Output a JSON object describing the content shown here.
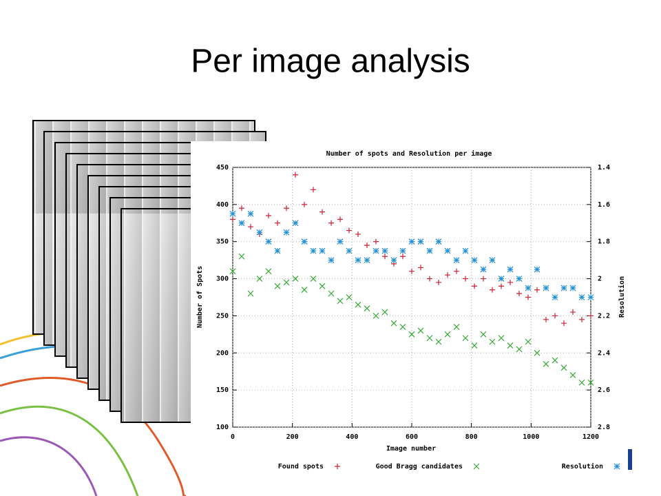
{
  "slide_title": "Per image analysis",
  "chart_data": {
    "type": "scatter",
    "title": "Number of spots and Resolution per image",
    "xlabel": "Image number",
    "ylabel": "Number of Spots",
    "y2label": "Resolution",
    "x": [
      0,
      30,
      60,
      90,
      120,
      150,
      180,
      210,
      240,
      270,
      300,
      330,
      360,
      390,
      420,
      450,
      480,
      510,
      540,
      570,
      600,
      630,
      660,
      690,
      720,
      750,
      780,
      810,
      840,
      870,
      900,
      930,
      960,
      990,
      1020,
      1050,
      1080,
      1110,
      1140,
      1170,
      1200
    ],
    "series": [
      {
        "name": "Found spots",
        "color": "#cc2233",
        "marker": "plus",
        "values": [
          380,
          395,
          370,
          360,
          385,
          375,
          395,
          440,
          400,
          420,
          390,
          375,
          380,
          365,
          360,
          345,
          350,
          330,
          320,
          330,
          310,
          315,
          300,
          295,
          305,
          310,
          300,
          290,
          300,
          285,
          290,
          295,
          280,
          275,
          285,
          245,
          250,
          240,
          255,
          245,
          250
        ]
      },
      {
        "name": "Good Bragg candidates",
        "color": "#33aa33",
        "marker": "cross",
        "values": [
          310,
          330,
          280,
          300,
          310,
          290,
          295,
          300,
          285,
          300,
          290,
          280,
          270,
          275,
          265,
          260,
          250,
          255,
          240,
          235,
          225,
          230,
          220,
          215,
          225,
          235,
          220,
          210,
          225,
          215,
          220,
          210,
          205,
          215,
          200,
          185,
          190,
          180,
          170,
          160,
          160
        ]
      },
      {
        "name": "Resolution",
        "color": "#1f8fd8",
        "marker": "star",
        "axis": "y2",
        "values": [
          1.65,
          1.7,
          1.65,
          1.75,
          1.8,
          1.85,
          1.75,
          1.7,
          1.8,
          1.85,
          1.85,
          1.9,
          1.8,
          1.85,
          1.9,
          1.9,
          1.85,
          1.85,
          1.9,
          1.85,
          1.8,
          1.8,
          1.85,
          1.8,
          1.85,
          1.9,
          1.85,
          1.9,
          1.95,
          1.9,
          2.0,
          1.95,
          2.0,
          2.05,
          1.95,
          2.05,
          2.1,
          2.05,
          2.05,
          2.1,
          2.1
        ]
      }
    ],
    "xlim": [
      0,
      1200
    ],
    "xticks": [
      0,
      200,
      400,
      600,
      800,
      1000,
      1200
    ],
    "ylim": [
      100,
      450
    ],
    "yticks": [
      100,
      150,
      200,
      250,
      300,
      350,
      400,
      450
    ],
    "y2lim": [
      2.8,
      1.4
    ],
    "y2ticks": [
      1.4,
      1.6,
      1.8,
      2,
      2.2,
      2.4,
      2.6,
      2.8
    ],
    "grid": true,
    "legend": "bottom"
  }
}
